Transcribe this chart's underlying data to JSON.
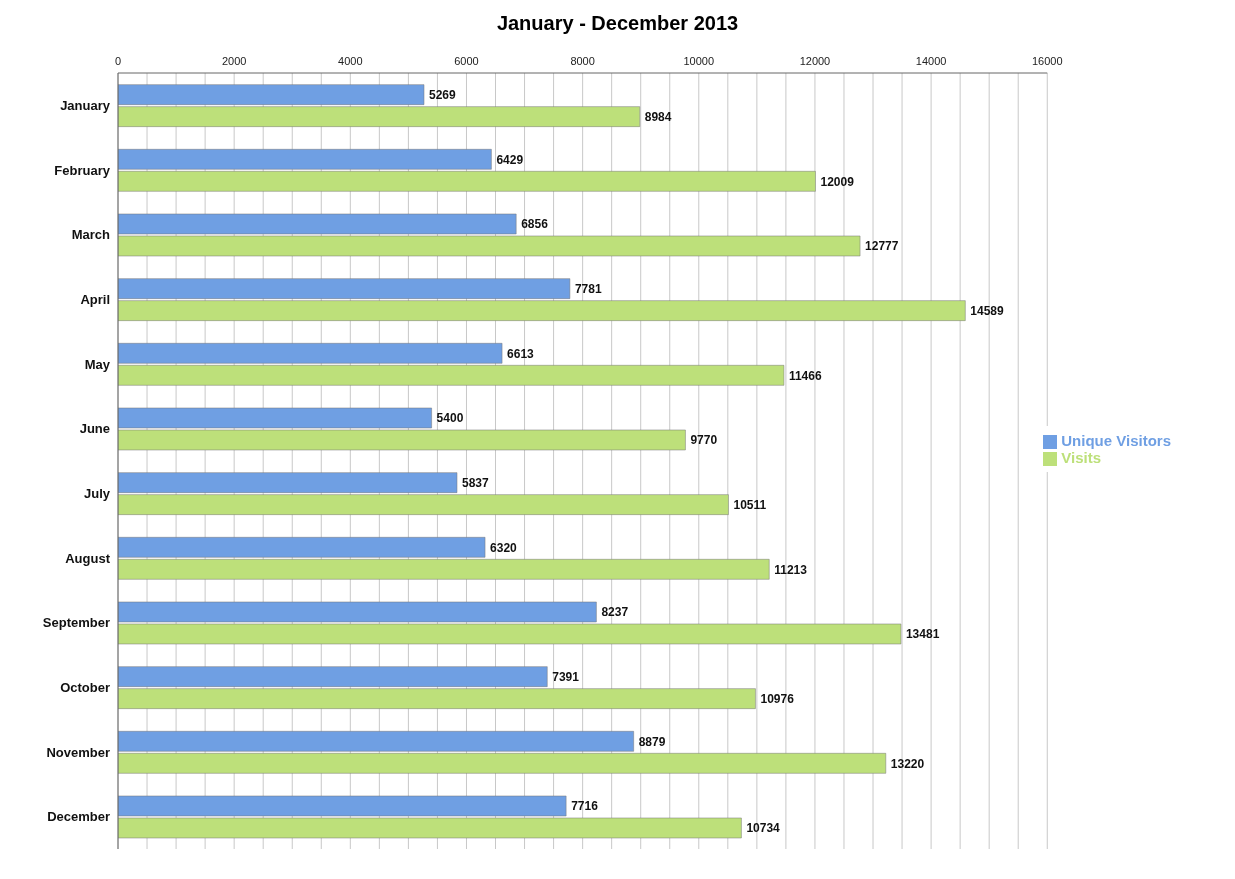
{
  "chart_data": {
    "type": "bar",
    "orientation": "horizontal",
    "title": "January - December 2013",
    "categories": [
      "January",
      "February",
      "March",
      "April",
      "May",
      "June",
      "July",
      "August",
      "September",
      "October",
      "November",
      "December"
    ],
    "series": [
      {
        "name": "Unique Visitors",
        "color": "#6f9fe3",
        "values": [
          5269,
          6429,
          6856,
          7781,
          6613,
          5400,
          5837,
          6320,
          8237,
          7391,
          8879,
          7716
        ]
      },
      {
        "name": "Visits",
        "color": "#bde07a",
        "values": [
          8984,
          12009,
          12777,
          14589,
          11466,
          9770,
          10511,
          11213,
          13481,
          10976,
          13220,
          10734
        ]
      }
    ],
    "xlim": [
      0,
      16000
    ],
    "xticks": [
      0,
      {
        "value": 500,
        "label": null
      },
      {
        "value": 1000,
        "label": null
      },
      {
        "value": 1500,
        "label": null
      },
      2000,
      {
        "value": 2500,
        "label": null
      },
      {
        "value": 3000,
        "label": null
      },
      {
        "value": 3500,
        "label": null
      },
      4000,
      {
        "value": 4500,
        "label": null
      },
      {
        "value": 5000,
        "label": null
      },
      {
        "value": 5500,
        "label": null
      },
      6000,
      {
        "value": 6500,
        "label": null
      },
      {
        "value": 7000,
        "label": null
      },
      {
        "value": 7500,
        "label": null
      },
      8000,
      {
        "value": 8500,
        "label": null
      },
      {
        "value": 9000,
        "label": null
      },
      {
        "value": 9500,
        "label": null
      },
      10000,
      {
        "value": 10500,
        "label": null
      },
      {
        "value": 11000,
        "label": null
      },
      {
        "value": 11500,
        "label": null
      },
      12000,
      {
        "value": 12500,
        "label": null
      },
      {
        "value": 13000,
        "label": null
      },
      {
        "value": 13500,
        "label": null
      },
      14000,
      {
        "value": 14500,
        "label": null
      },
      {
        "value": 15000,
        "label": null
      },
      {
        "value": 15500,
        "label": null
      },
      16000
    ],
    "grid": "x",
    "legend": "right",
    "data_labels": true
  }
}
